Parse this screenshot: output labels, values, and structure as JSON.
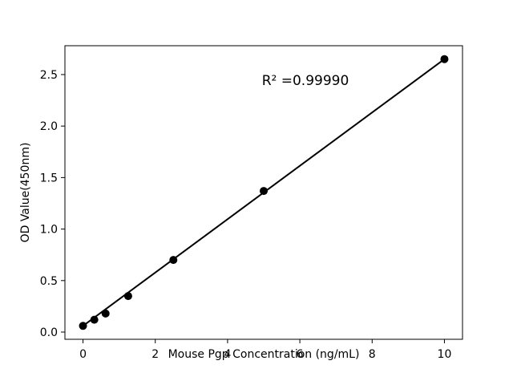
{
  "chart_data": {
    "type": "scatter",
    "x": [
      0,
      0.313,
      0.625,
      1.25,
      2.5,
      5,
      10
    ],
    "y": [
      0.06,
      0.12,
      0.18,
      0.35,
      0.7,
      1.37,
      2.65
    ],
    "fit_line": true,
    "title": "",
    "xlabel": "Mouse Pgp Concentration (ng/mL)",
    "ylabel": "OD Value(450nm)",
    "annotation": "R² =0.99990",
    "xticks": [
      "0",
      "2",
      "4",
      "6",
      "8",
      "10"
    ],
    "yticks": [
      "0.0",
      "0.5",
      "1.0",
      "1.5",
      "2.0",
      "2.5"
    ],
    "xlim": [
      -0.5,
      10.5
    ],
    "ylim": [
      -0.07,
      2.78
    ],
    "grid": false,
    "legend": "none",
    "marker_color": "#000000",
    "line_color": "#000000",
    "background": "#ffffff"
  }
}
